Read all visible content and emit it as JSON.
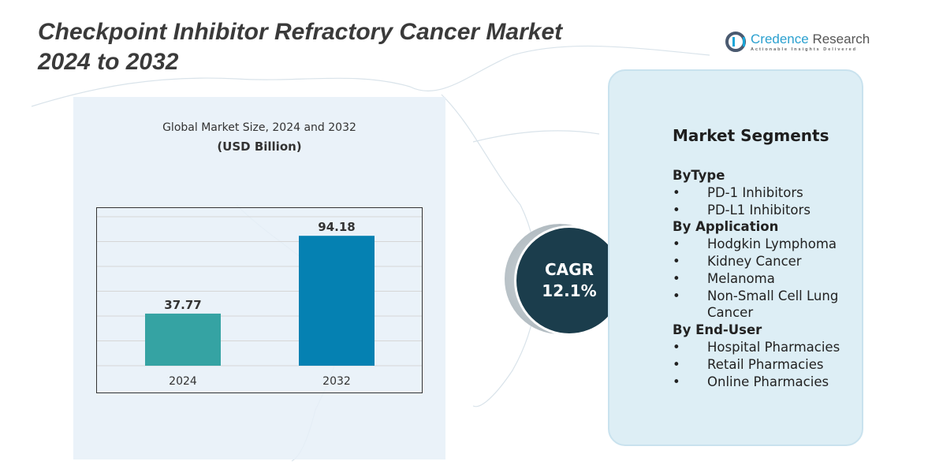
{
  "title_line1": "Checkpoint Inhibitor Refractory Cancer Market",
  "title_line2": "2024 to 2032",
  "logo": {
    "name_a": "Credence",
    "name_b": "Research",
    "tagline": "Actionable Insights Delivered"
  },
  "chart_data": {
    "type": "bar",
    "title": "Global Market Size, 2024 and 2032",
    "subtitle": "(USD Billion)",
    "categories": [
      "2024",
      "2032"
    ],
    "values": [
      37.77,
      94.18
    ],
    "value_labels": [
      "37.77",
      "94.18"
    ],
    "colors": [
      "#35a3a3",
      "#0581b2"
    ],
    "grid": true,
    "ylim": [
      0,
      108
    ]
  },
  "cagr": {
    "label": "CAGR",
    "value": "12.1%"
  },
  "segments": {
    "title": "Market Segments",
    "groups": [
      {
        "heading": "ByType",
        "items": [
          "PD-1 Inhibitors",
          "PD-L1 Inhibitors"
        ]
      },
      {
        "heading": "By Application",
        "items": [
          "Hodgkin Lymphoma",
          "Kidney Cancer",
          "Melanoma",
          "Non-Small Cell Lung Cancer"
        ]
      },
      {
        "heading": "By End-User",
        "items": [
          "Hospital Pharmacies",
          "Retail Pharmacies",
          "Online Pharmacies"
        ]
      }
    ]
  }
}
